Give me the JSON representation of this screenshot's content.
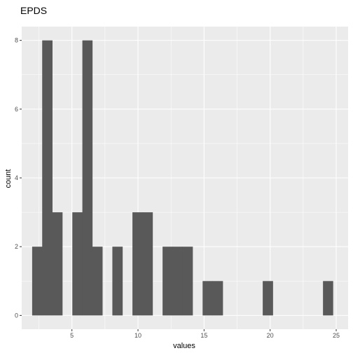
{
  "chart_data": {
    "type": "bar",
    "title": "EPDS",
    "xlabel": "values",
    "ylabel": "count",
    "xlim": [
      1.2,
      25.9
    ],
    "ylim": [
      -0.4,
      8.4
    ],
    "x_ticks": [
      5,
      10,
      15,
      20,
      25
    ],
    "y_ticks": [
      0,
      2,
      4,
      6,
      8
    ],
    "grid": true,
    "bin_width": 0.759,
    "bins": [
      {
        "x0": 1.99,
        "x1": 2.75,
        "count": 2
      },
      {
        "x0": 2.75,
        "x1": 3.51,
        "count": 8
      },
      {
        "x0": 3.51,
        "x1": 4.27,
        "count": 3
      },
      {
        "x0": 4.27,
        "x1": 5.03,
        "count": 0
      },
      {
        "x0": 5.03,
        "x1": 5.79,
        "count": 3
      },
      {
        "x0": 5.79,
        "x1": 6.54,
        "count": 8
      },
      {
        "x0": 6.54,
        "x1": 7.3,
        "count": 2
      },
      {
        "x0": 7.3,
        "x1": 8.06,
        "count": 0
      },
      {
        "x0": 8.06,
        "x1": 8.82,
        "count": 2
      },
      {
        "x0": 8.82,
        "x1": 9.58,
        "count": 0
      },
      {
        "x0": 9.58,
        "x1": 10.34,
        "count": 3
      },
      {
        "x0": 10.34,
        "x1": 11.1,
        "count": 3
      },
      {
        "x0": 11.1,
        "x1": 11.86,
        "count": 0
      },
      {
        "x0": 11.86,
        "x1": 12.61,
        "count": 2
      },
      {
        "x0": 12.61,
        "x1": 13.37,
        "count": 2
      },
      {
        "x0": 13.37,
        "x1": 14.13,
        "count": 2
      },
      {
        "x0": 14.13,
        "x1": 14.89,
        "count": 0
      },
      {
        "x0": 14.89,
        "x1": 15.65,
        "count": 1
      },
      {
        "x0": 15.65,
        "x1": 16.41,
        "count": 1
      },
      {
        "x0": 16.41,
        "x1": 17.17,
        "count": 0
      },
      {
        "x0": 17.17,
        "x1": 17.93,
        "count": 0
      },
      {
        "x0": 17.93,
        "x1": 18.68,
        "count": 0
      },
      {
        "x0": 18.68,
        "x1": 19.44,
        "count": 0
      },
      {
        "x0": 19.44,
        "x1": 20.2,
        "count": 1
      },
      {
        "x0": 20.2,
        "x1": 20.96,
        "count": 0
      },
      {
        "x0": 20.96,
        "x1": 21.72,
        "count": 0
      },
      {
        "x0": 21.72,
        "x1": 22.48,
        "count": 0
      },
      {
        "x0": 22.48,
        "x1": 23.24,
        "count": 0
      },
      {
        "x0": 23.24,
        "x1": 24.0,
        "count": 0
      },
      {
        "x0": 24.0,
        "x1": 24.75,
        "count": 1
      }
    ],
    "colors": {
      "panel": "#ebebeb",
      "grid_major": "#ffffff",
      "bar": "#595959",
      "tick_mark": "#333333"
    }
  }
}
